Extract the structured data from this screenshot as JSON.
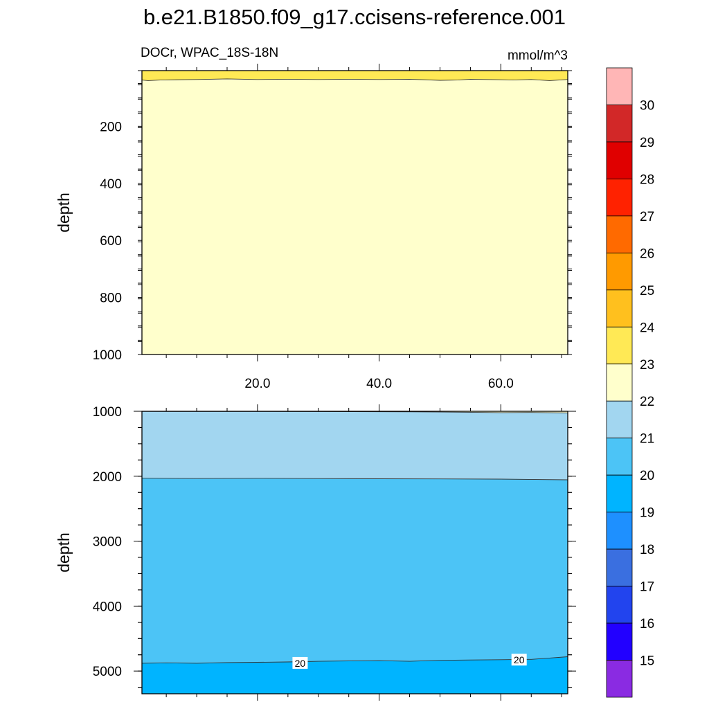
{
  "title": "b.e21.B1850.f09_g17.ccisens-reference.001",
  "subtitle_left": "DOCr, WPAC_18S-18N",
  "subtitle_right": "mmol/m^3",
  "chart_data": [
    {
      "type": "heatmap",
      "panel": "upper",
      "ylabel": "depth",
      "xlim": [
        1,
        71
      ],
      "ylim": [
        1000,
        5
      ],
      "x_tick_labels": [
        "20.0",
        "40.0",
        "60.0"
      ],
      "x_ticks": [
        20,
        40,
        60
      ],
      "y_tick_labels": [
        "200",
        "400",
        "600",
        "800",
        "1000"
      ],
      "y_ticks": [
        200,
        400,
        600,
        800,
        1000
      ],
      "bands": [
        {
          "range": "23-24",
          "from": "surface",
          "to": "contour_23"
        },
        {
          "range": "22-23",
          "from": "contour_23",
          "to": "bottom"
        }
      ],
      "contours": [
        {
          "level": 23,
          "x": [
            1,
            2,
            4,
            10,
            15,
            20,
            25,
            30,
            35,
            40,
            45,
            50,
            53,
            55,
            60,
            62,
            65,
            68,
            71
          ],
          "depth": [
            38,
            40,
            38,
            36,
            34,
            36,
            35,
            36,
            35,
            36,
            35,
            39,
            38,
            35,
            37,
            38,
            36,
            40,
            36
          ]
        }
      ]
    },
    {
      "type": "heatmap",
      "panel": "lower",
      "ylabel": "depth",
      "xlim": [
        1,
        71
      ],
      "ylim": [
        5350,
        1000
      ],
      "y_tick_labels": [
        "1000",
        "2000",
        "3000",
        "4000",
        "5000"
      ],
      "y_ticks": [
        1000,
        2000,
        3000,
        4000,
        5000
      ],
      "bands": [
        {
          "range": "22-23",
          "from": "top",
          "to": "contour_22"
        },
        {
          "range": "21-22",
          "from": "contour_22",
          "to": "contour_21"
        },
        {
          "range": "20-21",
          "from": "contour_21",
          "to": "contour_20"
        },
        {
          "range": "19-20",
          "from": "contour_20",
          "to": "bottom"
        }
      ],
      "contours": [
        {
          "level": 22,
          "x": [
            1,
            30,
            45,
            55,
            60,
            65,
            71
          ],
          "depth": [
            1002,
            1004,
            1008,
            1015,
            1020,
            1018,
            1025
          ]
        },
        {
          "level": 21,
          "x": [
            1,
            10,
            20,
            30,
            40,
            50,
            60,
            71
          ],
          "depth": [
            2030,
            2035,
            2032,
            2036,
            2040,
            2042,
            2045,
            2055
          ]
        },
        {
          "level": 20,
          "x": [
            1,
            5,
            10,
            15,
            20,
            25,
            30,
            35,
            40,
            45,
            50,
            55,
            60,
            65,
            68,
            71
          ],
          "depth": [
            4880,
            4875,
            4880,
            4870,
            4865,
            4860,
            4850,
            4845,
            4840,
            4850,
            4835,
            4830,
            4825,
            4820,
            4800,
            4780
          ]
        }
      ],
      "contour_labels": [
        {
          "text": "20",
          "x": 27,
          "depth": 4880
        },
        {
          "text": "20",
          "x": 63,
          "depth": 4830
        }
      ]
    }
  ],
  "colorbar": {
    "labels": [
      "15",
      "16",
      "17",
      "18",
      "19",
      "20",
      "21",
      "22",
      "23",
      "24",
      "25",
      "26",
      "27",
      "28",
      "29",
      "30"
    ],
    "colors": [
      "#8a2be2",
      "#2200ff",
      "#2244ee",
      "#3a6fe0",
      "#1e90ff",
      "#00b4ff",
      "#4cc4f6",
      "#a2d6f0",
      "#ffffcc",
      "#ffe955",
      "#ffc01e",
      "#ff9a00",
      "#ff6a00",
      "#ff2200",
      "#e00000",
      "#d22828",
      "#ffb6b6"
    ],
    "band_ranges": {
      "19-20": "#00b4ff",
      "20-21": "#4cc4f6",
      "21-22": "#a2d6f0",
      "22-23": "#ffffcc",
      "23-24": "#ffe955"
    }
  }
}
